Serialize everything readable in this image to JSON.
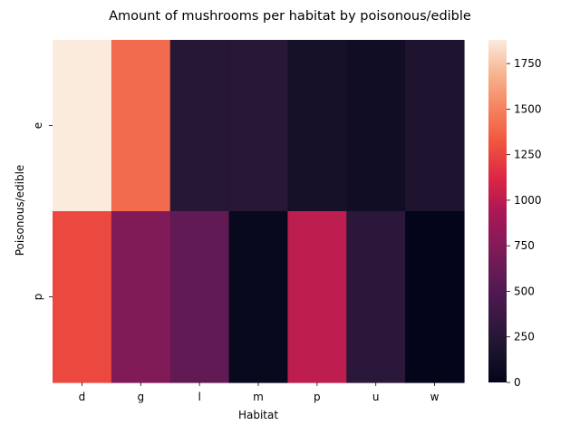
{
  "chart_data": {
    "type": "heatmap",
    "title": "Amount of mushrooms per habitat by poisonous/edible",
    "xlabel": "Habitat",
    "ylabel": "Poisonous/edible",
    "x_categories": [
      "d",
      "g",
      "l",
      "m",
      "p",
      "u",
      "w"
    ],
    "y_categories": [
      "e",
      "p"
    ],
    "values": [
      [
        1880,
        1408,
        240,
        256,
        136,
        96,
        192
      ],
      [
        1268,
        740,
        592,
        36,
        1008,
        272,
        0
      ]
    ],
    "colorbar": {
      "min": 0,
      "max": 1880,
      "ticks": [
        0,
        250,
        500,
        750,
        1000,
        1250,
        1500,
        1750
      ],
      "colormap": "rocket"
    },
    "grid": false
  }
}
